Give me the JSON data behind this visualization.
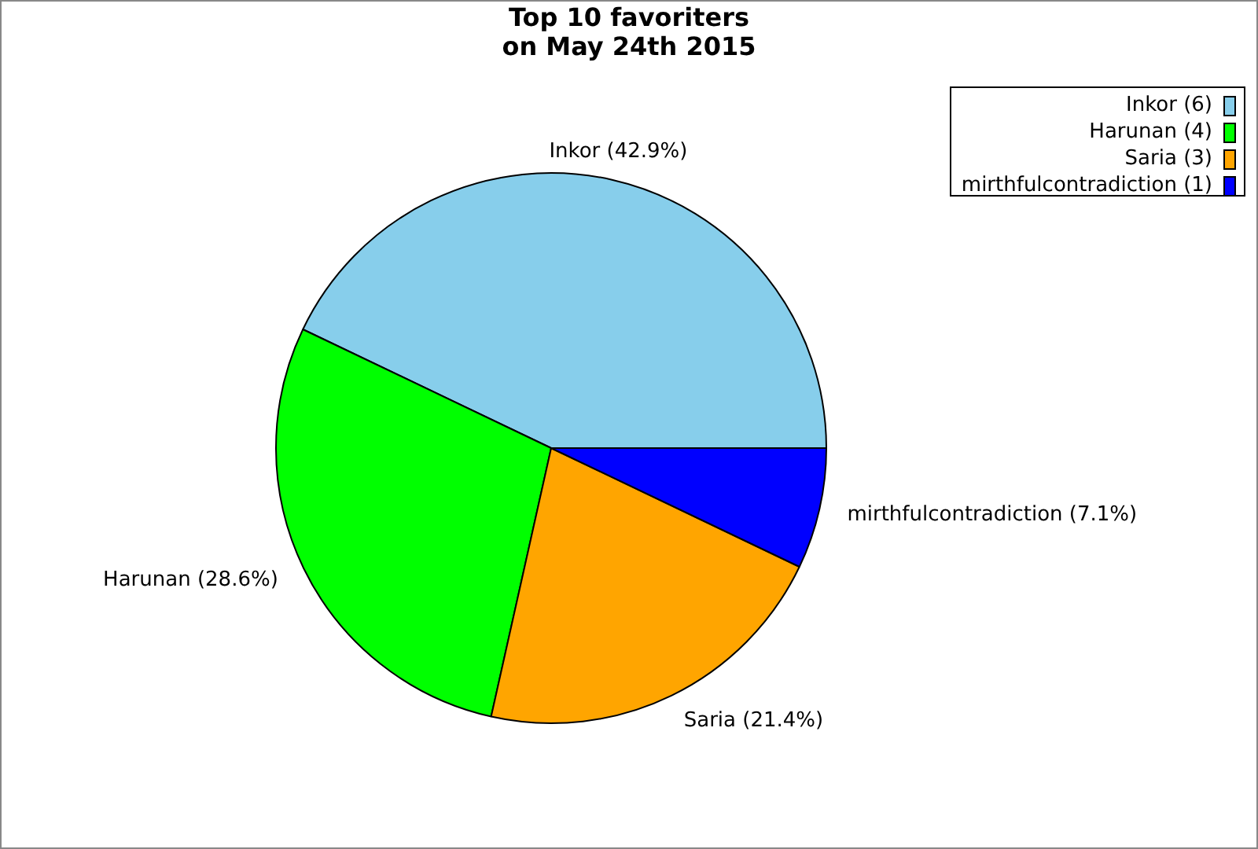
{
  "chart_data": {
    "type": "pie",
    "title": "Top 10 favoriters\non May 24th 2015",
    "categories": [
      "Inkor (6)",
      "Harunan (4)",
      "Saria (3)",
      "mirthfulcontradiction (1)"
    ],
    "values": [
      42.9,
      28.6,
      21.4,
      7.1
    ],
    "colors": [
      "#87ceeb",
      "#00ff00",
      "#ffa500",
      "#0000ff"
    ],
    "value_labels": [
      "Inkor (42.9%)",
      "Harunan (28.6%)",
      "Saria (21.4%)",
      "mirthfulcontradiction (7.1%)"
    ],
    "legend": "top right"
  }
}
